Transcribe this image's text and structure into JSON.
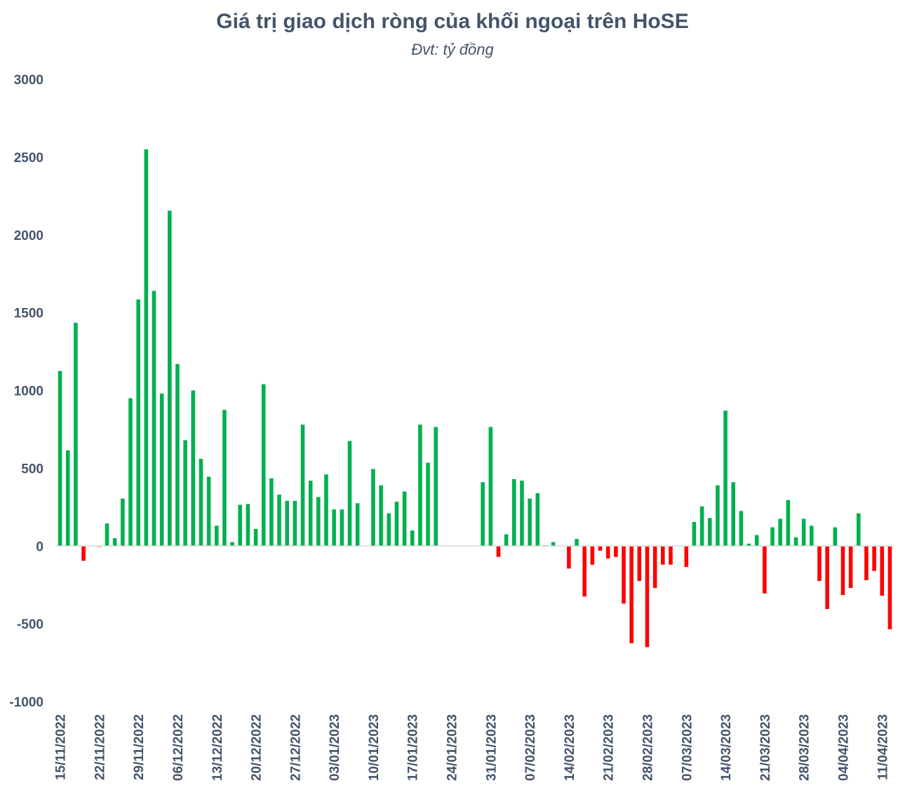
{
  "chart_data": {
    "type": "bar",
    "title": "Giá trị giao dịch ròng của khối ngoại trên HoSE",
    "subtitle": "Đvt: tỷ đồng",
    "ylim": [
      -1000,
      3000
    ],
    "yticks": [
      3000,
      2500,
      2000,
      1500,
      1000,
      500,
      0,
      -500,
      -1000
    ],
    "grid": false,
    "legend": "none",
    "x_tick_labels": [
      "15/11/2022",
      "22/11/2022",
      "29/11/2022",
      "06/12/2022",
      "13/12/2022",
      "20/12/2022",
      "27/12/2022",
      "03/01/2023",
      "10/01/2023",
      "17/01/2023",
      "24/01/2023",
      "31/01/2023",
      "07/02/2023",
      "14/02/2023",
      "21/02/2023",
      "28/02/2023",
      "07/03/2023",
      "14/03/2023",
      "21/03/2023",
      "28/03/2023",
      "04/04/2023",
      "11/04/2023"
    ],
    "colors": {
      "positive": "#00b050",
      "negative": "#ff0000",
      "text": "#44546a"
    },
    "series": [
      {
        "values": [
          1125,
          615,
          1435,
          -95,
          null,
          -5,
          145,
          50,
          305,
          950,
          1585,
          2550,
          1640,
          980,
          2155,
          1170,
          680,
          1000,
          560,
          445,
          130,
          875,
          25,
          265,
          270,
          110,
          1040,
          435,
          330,
          290,
          290,
          780,
          420,
          315,
          460,
          235,
          235,
          675,
          275,
          null,
          495,
          390,
          210,
          285,
          350,
          100,
          780,
          535,
          765,
          null,
          null,
          null,
          null,
          null,
          410,
          765,
          -70,
          75,
          430,
          420,
          305,
          340,
          5,
          25,
          null,
          -145,
          45,
          -325,
          -120,
          -30,
          -80,
          -70,
          -370,
          -625,
          -225,
          -650,
          -270,
          -120,
          -120,
          null,
          -135,
          155,
          255,
          180,
          390,
          870,
          410,
          225,
          15,
          70,
          -305,
          120,
          175,
          295,
          55,
          175,
          130,
          -225,
          -405,
          120,
          -315,
          -270,
          210,
          -220,
          -160,
          -320,
          -535
        ]
      }
    ]
  }
}
